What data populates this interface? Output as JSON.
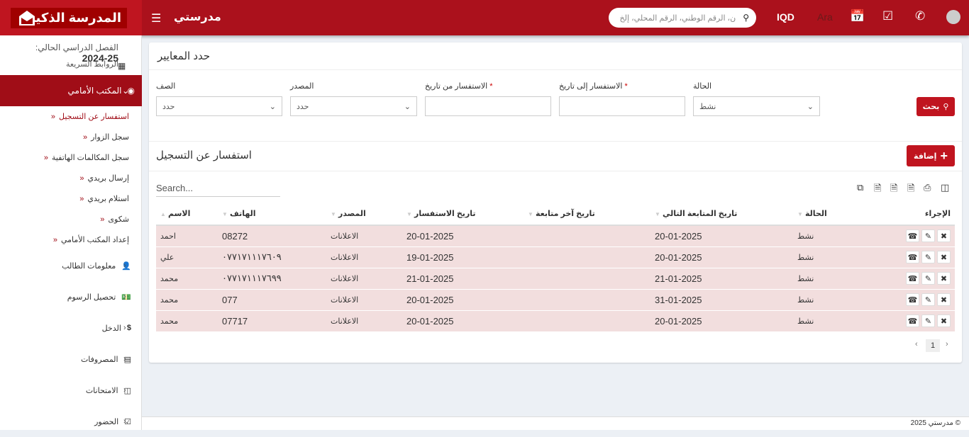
{
  "header": {
    "logo_text": "المدرسة الذكية",
    "brand": "مدرستي",
    "search_placeholder": "ن، الرقم الوطني، الرقم المحلي، إلخ",
    "currency": "IQD",
    "language": "Ara"
  },
  "sidebar": {
    "semester_label": "الفصل الدراسي الحالي:",
    "semester_value": "2024-25",
    "quick_links": "الروابط السريعة",
    "active_menu": "المكتب الأمامي",
    "sub_items": [
      "استفسار عن التسجيل",
      "سجل الزوار",
      "سجل المكالمات الهاتفية",
      "إرسال بريدي",
      "استلام بريدي",
      "شكوى",
      "إعداد المكتب الأمامي"
    ],
    "items": [
      {
        "label": "معلومات الطالب",
        "icon": "user-plus-icon"
      },
      {
        "label": "تحصيل الرسوم",
        "icon": "money-icon"
      },
      {
        "label": "الدخل",
        "icon": "dollar-icon"
      },
      {
        "label": "المصروفات",
        "icon": "credit-card-icon"
      },
      {
        "label": "الامتحانات",
        "icon": "map-icon"
      },
      {
        "label": "الحضور",
        "icon": "calendar-check-icon"
      }
    ]
  },
  "criteria": {
    "title": "حدد المعايير",
    "class_label": "الصف",
    "class_value": "حدد",
    "source_label": "المصدر",
    "source_value": "حدد",
    "from_label": "الاستفسار من تاريخ",
    "to_label": "الاستفسار إلى تاريخ",
    "status_label": "الحالة",
    "status_value": "نشط",
    "search_button": "بحث"
  },
  "list": {
    "title": "استفسار عن التسجيل",
    "add_button": "إضافة",
    "search_placeholder": "Search...",
    "columns": [
      "الاسم",
      "الهاتف",
      "المصدر",
      "تاريخ الاستفسار",
      "تاريخ آخر متابعة",
      "تاريخ المتابعة التالي",
      "الحالة",
      "الإجراء"
    ],
    "rows": [
      {
        "name": "احمد",
        "phone": "08272",
        "source": "الاعلانات",
        "enquiry": "20-01-2025",
        "last": "",
        "next": "20-01-2025",
        "status": "نشط"
      },
      {
        "name": "علي",
        "phone": "٠٧٧١٧١١١٧٦٠٩",
        "source": "الاعلانات",
        "enquiry": "19-01-2025",
        "last": "",
        "next": "20-01-2025",
        "status": "نشط"
      },
      {
        "name": "محمد",
        "phone": "٠٧٧١٧١١١٧٦٩٩",
        "source": "الاعلانات",
        "enquiry": "21-01-2025",
        "last": "",
        "next": "21-01-2025",
        "status": "نشط"
      },
      {
        "name": "محمد",
        "phone": "077",
        "source": "الاعلانات",
        "enquiry": "20-01-2025",
        "last": "",
        "next": "31-01-2025",
        "status": "نشط"
      },
      {
        "name": "محمد",
        "phone": "07717",
        "source": "الاعلانات",
        "enquiry": "20-01-2025",
        "last": "",
        "next": "20-01-2025",
        "status": "نشط"
      }
    ],
    "page": "1"
  },
  "footer": "مدرستي 2025 ©",
  "colors": {
    "primary": "#ab111c",
    "row": "#f2dede"
  }
}
